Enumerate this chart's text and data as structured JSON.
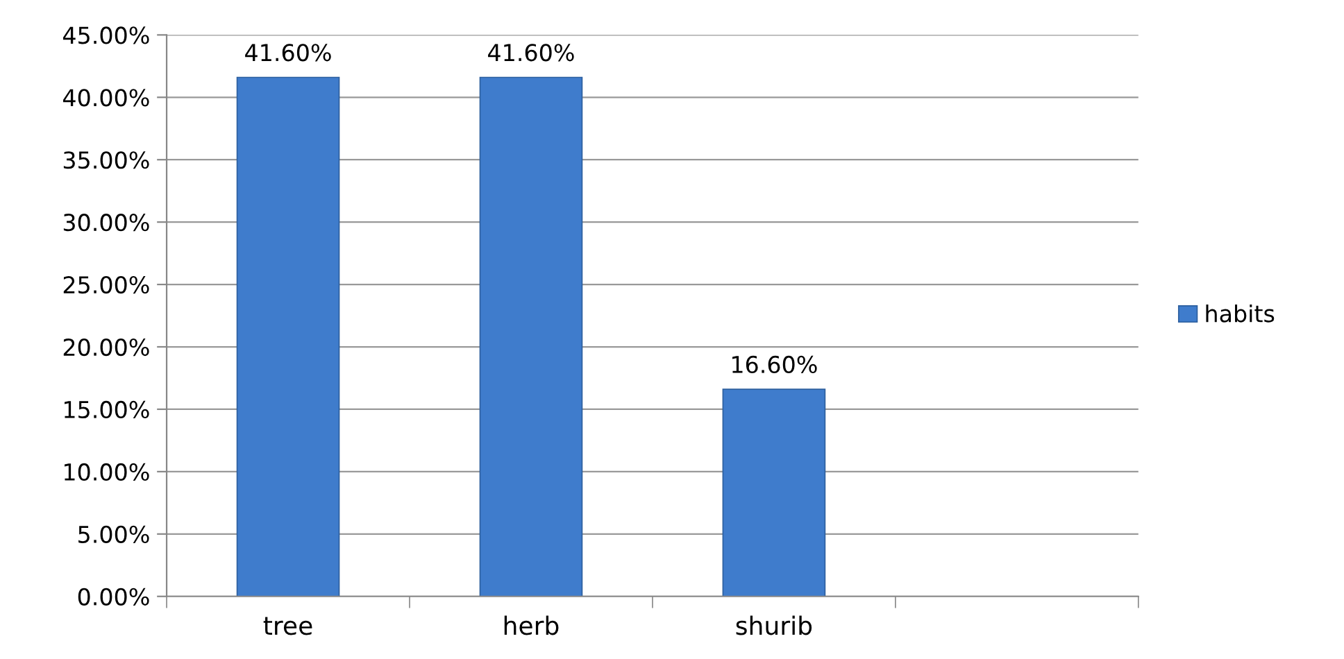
{
  "chart_data": {
    "type": "bar",
    "categories": [
      "tree",
      "herb",
      "shurib",
      null
    ],
    "series": [
      {
        "name": "habits",
        "color": "#3f7ccc",
        "values": [
          41.6,
          41.6,
          16.6,
          null
        ],
        "value_labels": [
          "41.60%",
          "41.60%",
          "16.60%",
          null
        ]
      }
    ],
    "ylim": [
      0,
      45
    ],
    "yticks": [
      {
        "value": 0,
        "label": "0.00%"
      },
      {
        "value": 5,
        "label": "5.00%"
      },
      {
        "value": 10,
        "label": "10.00%"
      },
      {
        "value": 15,
        "label": "15.00%"
      },
      {
        "value": 20,
        "label": "20.00%"
      },
      {
        "value": 25,
        "label": "25.00%"
      },
      {
        "value": 30,
        "label": "30.00%"
      },
      {
        "value": 35,
        "label": "35.00%"
      },
      {
        "value": 40,
        "label": "40.00%"
      },
      {
        "value": 45,
        "label": "45.00%"
      }
    ],
    "grid": "y",
    "legend": "right"
  }
}
